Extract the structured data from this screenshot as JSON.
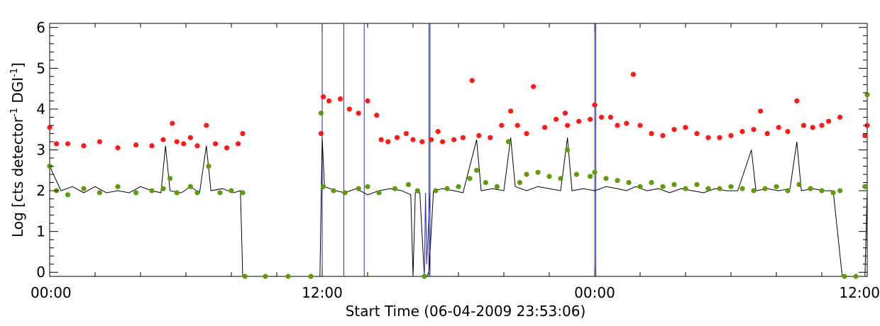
{
  "chart_data": {
    "type": "scatter",
    "xlabel": "Start Time (06-04-2009 23:53:06)",
    "ylabel_parts": [
      "Log [cts detector",
      "-1",
      " DGI",
      "-1",
      "]"
    ],
    "x_unit": "hours since 00:00",
    "xlim": [
      0,
      36
    ],
    "ylim": [
      -0.1,
      6.1
    ],
    "x_ticks": [
      {
        "v": 0,
        "label": "00:00"
      },
      {
        "v": 12,
        "label": "12:00"
      },
      {
        "v": 24,
        "label": "00:00"
      },
      {
        "v": 36,
        "label": "12:00"
      }
    ],
    "y_ticks": [
      {
        "v": 0,
        "label": "0"
      },
      {
        "v": 1,
        "label": "1"
      },
      {
        "v": 2,
        "label": "2"
      },
      {
        "v": 3,
        "label": "3"
      },
      {
        "v": 4,
        "label": "4"
      },
      {
        "v": 5,
        "label": "5"
      },
      {
        "v": 6,
        "label": "6"
      }
    ],
    "grid": false,
    "colors": {
      "red": "#ff1a1a",
      "green": "#5f9a0f",
      "black": "#000000",
      "blue": "#2b2ba8"
    },
    "vertical_lines_x": [
      12.0,
      12.95,
      13.85,
      16.7,
      16.75,
      24.0,
      24.05
    ],
    "series": [
      {
        "style": "dots",
        "color": "red",
        "points": [
          [
            0.0,
            3.55
          ],
          [
            0.3,
            3.15
          ],
          [
            0.8,
            3.15
          ],
          [
            1.5,
            3.1
          ],
          [
            2.2,
            3.2
          ],
          [
            3.0,
            3.05
          ],
          [
            3.8,
            3.12
          ],
          [
            4.5,
            3.1
          ],
          [
            5.0,
            3.25
          ],
          [
            5.4,
            3.65
          ],
          [
            5.6,
            3.2
          ],
          [
            5.9,
            3.15
          ],
          [
            6.2,
            3.3
          ],
          [
            6.5,
            3.1
          ],
          [
            6.9,
            3.6
          ],
          [
            7.3,
            3.15
          ],
          [
            7.8,
            3.05
          ],
          [
            8.3,
            3.15
          ],
          [
            8.5,
            3.4
          ],
          [
            11.95,
            3.4
          ],
          [
            12.05,
            4.3
          ],
          [
            12.3,
            4.2
          ],
          [
            12.8,
            4.25
          ],
          [
            13.2,
            4.0
          ],
          [
            13.6,
            3.9
          ],
          [
            14.0,
            4.2
          ],
          [
            14.4,
            3.85
          ],
          [
            14.6,
            3.25
          ],
          [
            14.9,
            3.2
          ],
          [
            15.3,
            3.3
          ],
          [
            15.7,
            3.4
          ],
          [
            16.0,
            3.25
          ],
          [
            16.4,
            3.2
          ],
          [
            16.8,
            3.25
          ],
          [
            17.1,
            3.45
          ],
          [
            17.3,
            3.2
          ],
          [
            17.8,
            3.25
          ],
          [
            18.2,
            3.3
          ],
          [
            18.6,
            4.7
          ],
          [
            18.9,
            3.35
          ],
          [
            19.4,
            3.3
          ],
          [
            19.9,
            3.6
          ],
          [
            20.3,
            3.95
          ],
          [
            20.6,
            3.6
          ],
          [
            21.0,
            3.4
          ],
          [
            21.3,
            4.55
          ],
          [
            21.8,
            3.55
          ],
          [
            22.3,
            3.75
          ],
          [
            22.7,
            3.9
          ],
          [
            22.8,
            3.6
          ],
          [
            23.3,
            3.7
          ],
          [
            23.8,
            3.75
          ],
          [
            24.0,
            4.1
          ],
          [
            24.3,
            3.8
          ],
          [
            24.7,
            3.8
          ],
          [
            25.0,
            3.6
          ],
          [
            25.4,
            3.65
          ],
          [
            25.7,
            4.85
          ],
          [
            26.0,
            3.6
          ],
          [
            26.5,
            3.4
          ],
          [
            27.0,
            3.35
          ],
          [
            27.5,
            3.5
          ],
          [
            28.0,
            3.55
          ],
          [
            28.5,
            3.4
          ],
          [
            29.0,
            3.3
          ],
          [
            29.5,
            3.3
          ],
          [
            30.0,
            3.35
          ],
          [
            30.5,
            3.45
          ],
          [
            31.0,
            3.5
          ],
          [
            31.3,
            3.95
          ],
          [
            31.6,
            3.4
          ],
          [
            32.1,
            3.55
          ],
          [
            32.5,
            3.45
          ],
          [
            32.9,
            4.2
          ],
          [
            33.2,
            3.6
          ],
          [
            33.6,
            3.55
          ],
          [
            34.0,
            3.6
          ],
          [
            34.3,
            3.7
          ],
          [
            34.8,
            3.8
          ],
          [
            35.9,
            3.35
          ],
          [
            36.0,
            3.6
          ]
        ]
      },
      {
        "style": "dots",
        "color": "green",
        "points": [
          [
            0.0,
            2.6
          ],
          [
            0.3,
            2.0
          ],
          [
            0.8,
            1.9
          ],
          [
            1.5,
            2.05
          ],
          [
            2.2,
            1.95
          ],
          [
            3.0,
            2.1
          ],
          [
            3.8,
            1.95
          ],
          [
            4.5,
            2.0
          ],
          [
            5.0,
            2.05
          ],
          [
            5.3,
            2.3
          ],
          [
            5.6,
            1.95
          ],
          [
            6.2,
            2.1
          ],
          [
            6.5,
            1.95
          ],
          [
            7.0,
            2.6
          ],
          [
            7.5,
            1.95
          ],
          [
            8.0,
            2.0
          ],
          [
            8.5,
            1.95
          ],
          [
            8.6,
            -0.1
          ],
          [
            9.5,
            -0.1
          ],
          [
            10.5,
            -0.1
          ],
          [
            11.5,
            -0.1
          ],
          [
            11.95,
            3.9
          ],
          [
            12.05,
            2.1
          ],
          [
            12.5,
            2.0
          ],
          [
            13.0,
            1.95
          ],
          [
            13.6,
            2.05
          ],
          [
            14.0,
            2.1
          ],
          [
            14.5,
            1.95
          ],
          [
            15.2,
            2.05
          ],
          [
            15.8,
            2.15
          ],
          [
            16.2,
            2.0
          ],
          [
            16.5,
            -0.1
          ],
          [
            17.0,
            2.0
          ],
          [
            17.5,
            2.05
          ],
          [
            18.0,
            2.1
          ],
          [
            18.5,
            2.3
          ],
          [
            18.8,
            2.5
          ],
          [
            19.2,
            2.2
          ],
          [
            19.7,
            2.1
          ],
          [
            20.2,
            3.2
          ],
          [
            20.7,
            2.2
          ],
          [
            21.0,
            2.4
          ],
          [
            21.5,
            2.45
          ],
          [
            22.0,
            2.35
          ],
          [
            22.5,
            2.3
          ],
          [
            22.8,
            3.0
          ],
          [
            23.2,
            2.4
          ],
          [
            23.8,
            2.35
          ],
          [
            24.0,
            2.45
          ],
          [
            24.5,
            2.3
          ],
          [
            25.0,
            2.25
          ],
          [
            25.5,
            2.2
          ],
          [
            26.0,
            2.1
          ],
          [
            26.5,
            2.2
          ],
          [
            27.0,
            2.1
          ],
          [
            27.5,
            2.15
          ],
          [
            28.0,
            2.05
          ],
          [
            28.5,
            2.15
          ],
          [
            29.0,
            2.05
          ],
          [
            29.5,
            2.05
          ],
          [
            30.0,
            2.1
          ],
          [
            30.5,
            2.05
          ],
          [
            31.0,
            2.0
          ],
          [
            31.5,
            2.05
          ],
          [
            32.0,
            2.1
          ],
          [
            32.5,
            2.0
          ],
          [
            33.0,
            2.15
          ],
          [
            33.5,
            2.05
          ],
          [
            34.0,
            2.0
          ],
          [
            34.5,
            1.95
          ],
          [
            34.8,
            2.0
          ],
          [
            35.0,
            -0.1
          ],
          [
            35.5,
            -0.1
          ],
          [
            35.9,
            2.1
          ],
          [
            36.0,
            4.35
          ]
        ]
      },
      {
        "style": "line",
        "color": "black",
        "points": [
          [
            0.0,
            2.6
          ],
          [
            0.5,
            2.0
          ],
          [
            1.0,
            2.1
          ],
          [
            1.5,
            1.95
          ],
          [
            2.0,
            2.1
          ],
          [
            2.5,
            1.95
          ],
          [
            3.0,
            2.0
          ],
          [
            3.5,
            1.95
          ],
          [
            4.0,
            2.1
          ],
          [
            4.5,
            2.0
          ],
          [
            4.9,
            1.95
          ],
          [
            5.1,
            3.1
          ],
          [
            5.3,
            2.0
          ],
          [
            5.8,
            1.95
          ],
          [
            6.2,
            2.1
          ],
          [
            6.6,
            1.95
          ],
          [
            6.9,
            3.1
          ],
          [
            7.1,
            2.0
          ],
          [
            7.6,
            2.05
          ],
          [
            8.1,
            1.95
          ],
          [
            8.4,
            2.0
          ],
          [
            8.5,
            -0.1
          ],
          [
            11.9,
            -0.1
          ],
          [
            12.0,
            3.3
          ],
          [
            12.1,
            2.1
          ],
          [
            12.6,
            2.0
          ],
          [
            13.0,
            1.95
          ],
          [
            13.5,
            2.05
          ],
          [
            14.0,
            1.9
          ],
          [
            14.5,
            2.0
          ],
          [
            15.0,
            2.05
          ],
          [
            15.5,
            2.0
          ],
          [
            15.9,
            1.9
          ],
          [
            16.0,
            -0.1
          ],
          [
            16.1,
            1.95
          ],
          [
            16.3,
            1.95
          ],
          [
            16.5,
            -0.1
          ],
          [
            16.6,
            -0.1
          ],
          [
            16.7,
            0.0
          ],
          [
            16.9,
            2.0
          ],
          [
            17.3,
            2.05
          ],
          [
            17.8,
            2.0
          ],
          [
            18.2,
            1.95
          ],
          [
            18.8,
            3.25
          ],
          [
            19.0,
            2.0
          ],
          [
            19.5,
            2.05
          ],
          [
            20.0,
            2.0
          ],
          [
            20.3,
            3.3
          ],
          [
            20.5,
            2.1
          ],
          [
            21.0,
            2.0
          ],
          [
            21.5,
            2.1
          ],
          [
            22.0,
            2.05
          ],
          [
            22.5,
            2.0
          ],
          [
            22.8,
            3.3
          ],
          [
            23.0,
            2.0
          ],
          [
            23.5,
            2.05
          ],
          [
            24.0,
            2.0
          ],
          [
            24.5,
            2.1
          ],
          [
            25.0,
            2.05
          ],
          [
            25.4,
            2.0
          ],
          [
            25.8,
            2.1
          ],
          [
            26.3,
            2.0
          ],
          [
            26.8,
            2.05
          ],
          [
            27.3,
            1.95
          ],
          [
            27.8,
            2.05
          ],
          [
            28.3,
            2.0
          ],
          [
            28.8,
            1.95
          ],
          [
            29.3,
            2.05
          ],
          [
            29.8,
            2.0
          ],
          [
            30.3,
            2.0
          ],
          [
            30.9,
            3.0
          ],
          [
            31.1,
            2.0
          ],
          [
            31.6,
            2.05
          ],
          [
            32.1,
            2.0
          ],
          [
            32.6,
            2.05
          ],
          [
            32.9,
            3.2
          ],
          [
            33.1,
            2.0
          ],
          [
            33.6,
            2.05
          ],
          [
            34.1,
            2.0
          ],
          [
            34.5,
            2.0
          ],
          [
            34.9,
            -0.1
          ],
          [
            35.9,
            -0.1
          ],
          [
            36.0,
            2.0
          ]
        ]
      },
      {
        "style": "line",
        "color": "blue",
        "points": [
          [
            16.5,
            -0.1
          ],
          [
            16.55,
            1.95
          ],
          [
            16.6,
            0.2
          ],
          [
            16.75,
            2.0
          ]
        ]
      }
    ]
  }
}
